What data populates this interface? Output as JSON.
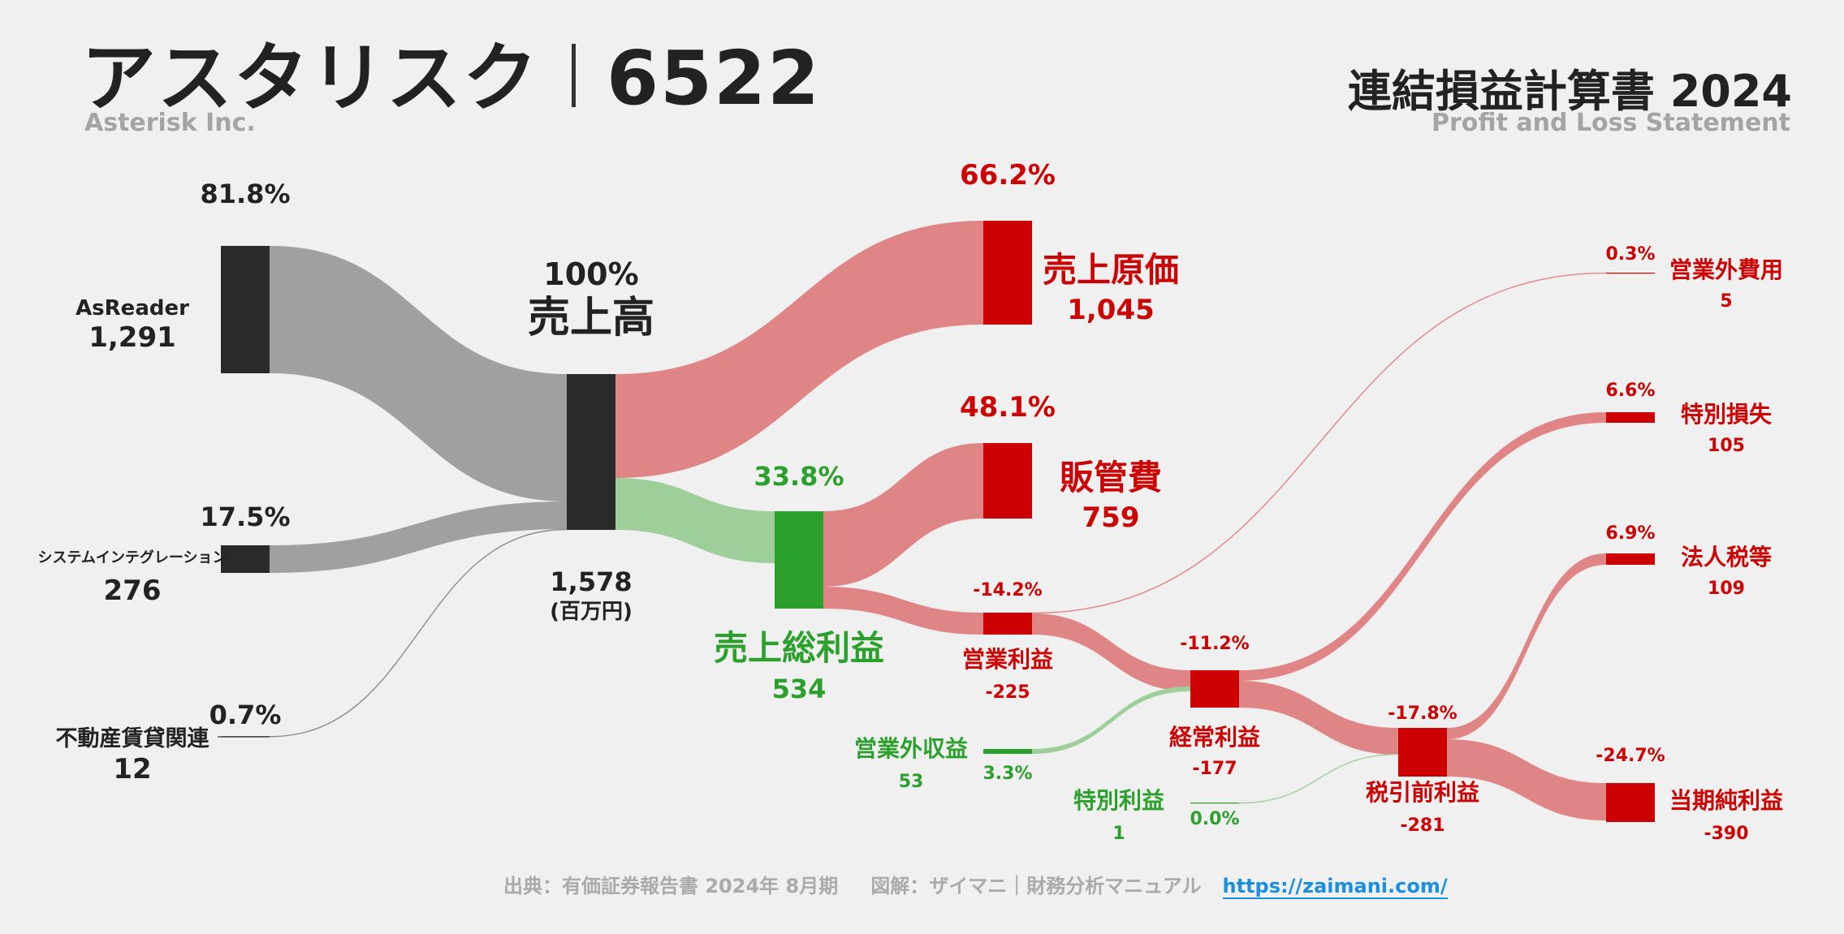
{
  "header": {
    "company_name": "アスタリスク",
    "ticker": "6522",
    "company_en": "Asterisk Inc.",
    "statement_title": "連結損益計算書 2024",
    "statement_en": "Profit and Loss Statement"
  },
  "footer": {
    "source": "出典：有価証券報告書 2024年 8月期",
    "diagram": "図解：ザイマニ｜財務分析マニュアル",
    "url": "https://zaimani.com/"
  },
  "colors": {
    "background": "#f0f0f0",
    "revenue_node": "#2a2a2a",
    "revenue_flow": "#a0a0a0",
    "cost_node": "#cc0000",
    "cost_flow": "#e08585",
    "profit_node": "#2ca02c",
    "profit_flow": "#9ecf9a",
    "link": "#1a8fe0"
  },
  "chart_data": {
    "type": "sankey",
    "unit": "(百万円)",
    "nodes": [
      {
        "id": "asreader",
        "label": "AsReader",
        "value": "1,291",
        "pct": "81.8%"
      },
      {
        "id": "si",
        "label": "システムインテグレーション",
        "value": "276",
        "pct": "17.5%"
      },
      {
        "id": "realestate",
        "label": "不動産賃貸関連",
        "value": "12",
        "pct": "0.7%"
      },
      {
        "id": "revenue",
        "label": "売上高",
        "value": "1,578",
        "pct": "100%"
      },
      {
        "id": "cogs",
        "label": "売上原価",
        "value": "1,045",
        "pct": "66.2%"
      },
      {
        "id": "gross",
        "label": "売上総利益",
        "value": "534",
        "pct": "33.8%"
      },
      {
        "id": "sga",
        "label": "販管費",
        "value": "759",
        "pct": "48.1%"
      },
      {
        "id": "operating",
        "label": "営業利益",
        "value": "-225",
        "pct": "-14.2%"
      },
      {
        "id": "nonop_income",
        "label": "営業外収益",
        "value": "53",
        "pct": "3.3%"
      },
      {
        "id": "nonop_expense",
        "label": "営業外費用",
        "value": "5",
        "pct": "0.3%"
      },
      {
        "id": "ordinary",
        "label": "経常利益",
        "value": "-177",
        "pct": "-11.2%"
      },
      {
        "id": "special_gain",
        "label": "特別利益",
        "value": "1",
        "pct": "0.0%"
      },
      {
        "id": "special_loss",
        "label": "特別損失",
        "value": "105",
        "pct": "6.6%"
      },
      {
        "id": "pretax",
        "label": "税引前利益",
        "value": "-281",
        "pct": "-17.8%"
      },
      {
        "id": "tax",
        "label": "法人税等",
        "value": "109",
        "pct": "6.9%"
      },
      {
        "id": "net",
        "label": "当期純利益",
        "value": "-390",
        "pct": "-24.7%"
      }
    ],
    "links": [
      {
        "source": "asreader",
        "target": "revenue",
        "value": 1291
      },
      {
        "source": "si",
        "target": "revenue",
        "value": 276
      },
      {
        "source": "realestate",
        "target": "revenue",
        "value": 12
      },
      {
        "source": "revenue",
        "target": "cogs",
        "value": 1045
      },
      {
        "source": "revenue",
        "target": "gross",
        "value": 534
      },
      {
        "source": "gross",
        "target": "sga",
        "value": 759
      },
      {
        "source": "gross",
        "target": "operating",
        "value": 225
      },
      {
        "source": "operating",
        "target": "nonop_expense",
        "value": 5
      },
      {
        "source": "operating",
        "target": "ordinary",
        "value": 225
      },
      {
        "source": "nonop_income",
        "target": "ordinary",
        "value": 53
      },
      {
        "source": "ordinary",
        "target": "special_loss",
        "value": 105
      },
      {
        "source": "ordinary",
        "target": "pretax",
        "value": 177
      },
      {
        "source": "special_gain",
        "target": "pretax",
        "value": 1
      },
      {
        "source": "pretax",
        "target": "tax",
        "value": 109
      },
      {
        "source": "pretax",
        "target": "net",
        "value": 281
      }
    ]
  }
}
